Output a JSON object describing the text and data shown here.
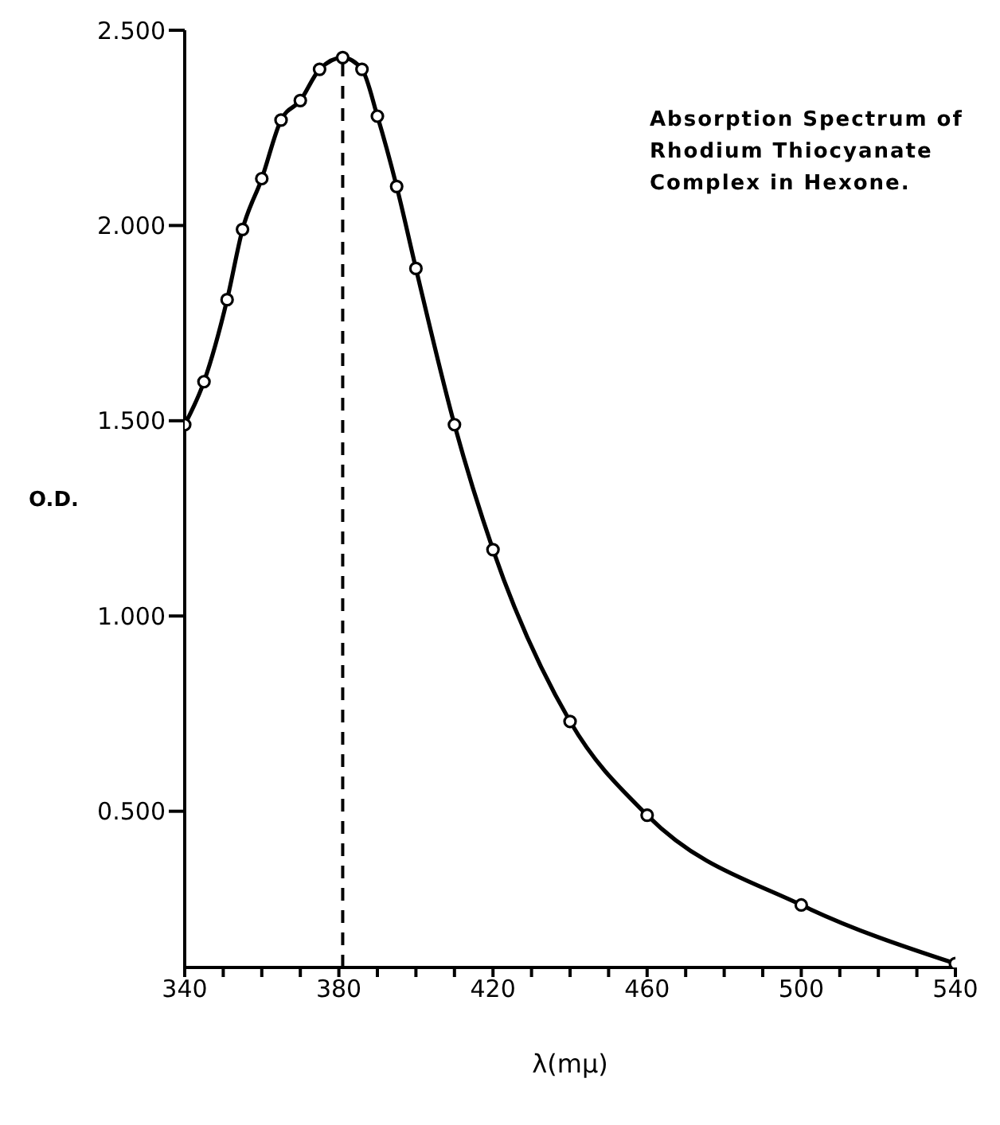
{
  "chart_data": {
    "type": "line",
    "xlabel": "λ(mμ)",
    "ylabel": "O.D.",
    "annotations": [
      "Absorption Spectrum of Rhodium Thiocyanate Complex in Hexone."
    ],
    "x": [
      340,
      345,
      351,
      355,
      360,
      365,
      370,
      375,
      381,
      386,
      390,
      395,
      400,
      410,
      420,
      440,
      460,
      500,
      540
    ],
    "series": [
      {
        "color": "#000000",
        "values": [
          1.49,
          1.6,
          1.81,
          1.99,
          2.12,
          2.27,
          2.32,
          2.4,
          2.43,
          2.4,
          2.28,
          2.1,
          1.89,
          1.49,
          1.17,
          0.73,
          0.49,
          0.26,
          0.11
        ]
      }
    ],
    "xlim": [
      340,
      540
    ],
    "xticks": [
      340,
      {
        "value": 350,
        "label": null
      },
      {
        "value": 360,
        "label": null
      },
      {
        "value": 370,
        "label": null
      },
      380,
      {
        "value": 390,
        "label": null
      },
      {
        "value": 400,
        "label": null
      },
      {
        "value": 410,
        "label": null
      },
      420,
      {
        "value": 430,
        "label": null
      },
      {
        "value": 440,
        "label": null
      },
      {
        "value": 450,
        "label": null
      },
      460,
      {
        "value": 470,
        "label": null
      },
      {
        "value": 480,
        "label": null
      },
      {
        "value": 490,
        "label": null
      },
      500,
      {
        "value": 510,
        "label": null
      },
      {
        "value": 520,
        "label": null
      },
      {
        "value": 530,
        "label": null
      },
      540
    ],
    "ylim": [
      0.1,
      2.5
    ],
    "yticks": [
      {
        "value": 0.5,
        "label": "0.500"
      },
      {
        "value": 1,
        "label": "1.000"
      },
      {
        "value": 1.5,
        "label": "1.500"
      },
      {
        "value": 2,
        "label": "2.000"
      },
      {
        "value": 2.5,
        "label": "2.500"
      }
    ],
    "ref_lines": [
      {
        "axis": "x",
        "value": 381,
        "line_style": "dashed"
      }
    ],
    "grid": false,
    "legend": false,
    "marker": "circle",
    "line_style": "solid"
  }
}
